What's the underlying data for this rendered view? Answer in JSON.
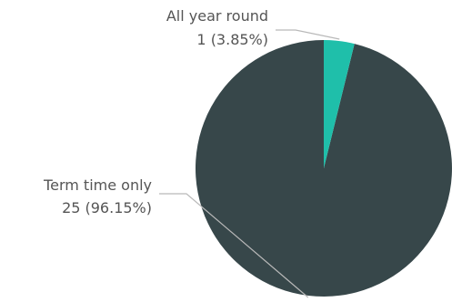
{
  "chart_data": {
    "type": "pie",
    "start_angle_deg": 0,
    "direction": "counterclockwise",
    "slices": [
      {
        "label": "Term time only",
        "value": 25,
        "percent_label": "25 (96.15%)",
        "color": "#37474a"
      },
      {
        "label": "All year round",
        "value": 1,
        "percent_label": "1 (3.85%)",
        "color": "#1fbfaa"
      }
    ]
  }
}
